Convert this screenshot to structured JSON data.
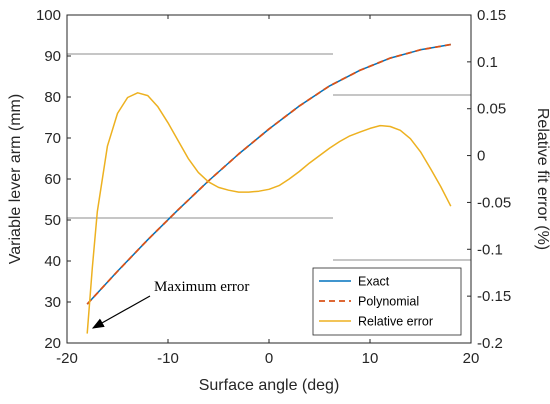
{
  "chart_data": {
    "type": "line",
    "xlabel": "Surface angle (deg)",
    "ylabel": "Variable lever arm (mm)",
    "y2label": "Relative fit error (%)",
    "xlim": [
      -20,
      20
    ],
    "ylim": [
      20,
      100
    ],
    "y2lim": [
      -0.2,
      0.15
    ],
    "xticks": [
      "-20",
      "-10",
      "0",
      "10",
      "20"
    ],
    "yticks": [
      "20",
      "30",
      "40",
      "50",
      "60",
      "70",
      "80",
      "90",
      "100"
    ],
    "y2ticks": [
      "-0.2",
      "-0.15",
      "-0.1",
      "-0.05",
      "0",
      "0.05",
      "0.1",
      "0.15"
    ],
    "legend_position": "bottom-right",
    "series": [
      {
        "name": "Exact",
        "axis": "left",
        "color": "#0072BD",
        "style": "solid",
        "x": [
          -18,
          -15,
          -12,
          -9,
          -6,
          -3,
          0,
          3,
          6,
          9,
          12,
          15,
          18
        ],
        "y": [
          29.5,
          37.5,
          45.2,
          52.5,
          59.5,
          66.1,
          72.2,
          77.8,
          82.7,
          86.5,
          89.5,
          91.5,
          92.8
        ]
      },
      {
        "name": "Polynomial",
        "axis": "left",
        "color": "#D95319",
        "style": "dashed",
        "x": [
          -18,
          -15,
          -12,
          -9,
          -6,
          -3,
          0,
          3,
          6,
          9,
          12,
          15,
          18
        ],
        "y": [
          29.5,
          37.5,
          45.2,
          52.5,
          59.5,
          66.1,
          72.2,
          77.8,
          82.7,
          86.5,
          89.5,
          91.5,
          92.8
        ]
      },
      {
        "name": "Relative error",
        "axis": "right",
        "color": "#EDB120",
        "style": "solid",
        "x": [
          -18,
          -17.5,
          -17,
          -16,
          -15,
          -14,
          -13,
          -12,
          -11,
          -10,
          -9,
          -8,
          -7,
          -6,
          -5,
          -4,
          -3,
          -2,
          -1,
          0,
          1,
          2,
          3,
          4,
          5,
          6,
          7,
          8,
          9,
          10,
          11,
          12,
          13,
          14,
          15,
          16,
          17,
          18
        ],
        "y": [
          -0.19,
          -0.12,
          -0.06,
          0.01,
          0.045,
          0.062,
          0.067,
          0.064,
          0.052,
          0.035,
          0.016,
          -0.003,
          -0.018,
          -0.028,
          -0.034,
          -0.037,
          -0.039,
          -0.039,
          -0.038,
          -0.036,
          -0.032,
          -0.025,
          -0.017,
          -0.008,
          0.0,
          0.008,
          0.015,
          0.021,
          0.025,
          0.029,
          0.032,
          0.031,
          0.027,
          0.018,
          0.004,
          -0.014,
          -0.033,
          -0.054
        ]
      }
    ],
    "annotation": {
      "text": "Maximum error",
      "points_to": {
        "x": -18,
        "y2": -0.19
      }
    }
  }
}
